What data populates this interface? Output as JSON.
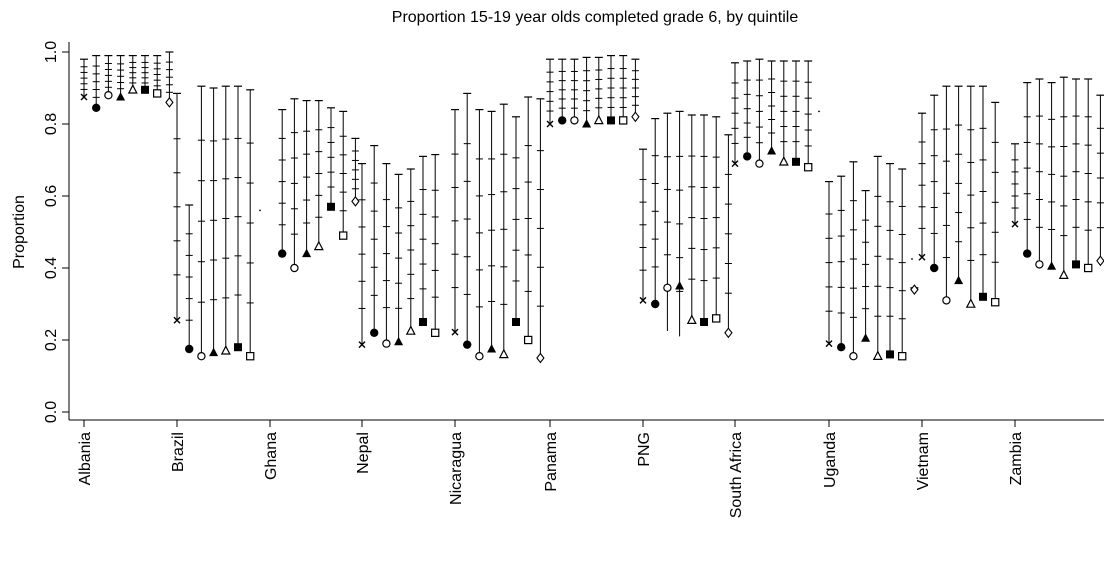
{
  "chart_data": {
    "type": "scatter",
    "title": "Proportion 15-19 year olds completed grade 6, by quintile",
    "xlabel": "",
    "ylabel": "Proportion",
    "ylim": [
      0.0,
      1.0
    ],
    "yticks": [
      "0.0",
      "0.2",
      "0.4",
      "0.6",
      "0.8",
      "1.0"
    ],
    "categories": [
      "Albania",
      "Brazil",
      "Ghana",
      "Nepal",
      "Nicaragua",
      "Panama",
      "PNG",
      "South Africa",
      "Uganda",
      "Vietnam",
      "Zambia"
    ],
    "series": [
      {
        "marker": "x",
        "values": [
          0.875,
          0.255,
          null,
          0.187,
          0.222,
          0.8,
          0.31,
          0.69,
          0.19,
          0.43,
          0.522
        ]
      },
      {
        "marker": "filled-circle",
        "values": [
          0.845,
          0.175,
          0.44,
          0.22,
          0.187,
          0.81,
          0.3,
          0.71,
          0.18,
          0.4,
          0.44
        ]
      },
      {
        "marker": "hollow-circle",
        "values": [
          0.88,
          0.155,
          0.4,
          0.19,
          0.155,
          0.81,
          0.345,
          0.69,
          0.155,
          0.31,
          0.41
        ]
      },
      {
        "marker": "filled-triangle",
        "values": [
          0.875,
          0.165,
          0.44,
          0.195,
          0.175,
          0.8,
          0.35,
          0.725,
          0.205,
          0.365,
          0.405
        ]
      },
      {
        "marker": "hollow-triangle",
        "values": [
          0.895,
          0.17,
          0.46,
          0.225,
          0.16,
          0.81,
          0.255,
          0.695,
          0.155,
          0.3,
          0.38
        ]
      },
      {
        "marker": "filled-square",
        "values": [
          0.895,
          0.18,
          0.57,
          0.25,
          0.25,
          0.81,
          0.25,
          0.695,
          0.16,
          0.32,
          0.41
        ]
      },
      {
        "marker": "hollow-square",
        "values": [
          0.885,
          0.155,
          0.49,
          0.22,
          0.2,
          0.81,
          0.26,
          0.68,
          0.155,
          0.305,
          0.4
        ]
      },
      {
        "marker": "hollow-diamond",
        "values": [
          0.86,
          null,
          0.585,
          null,
          0.15,
          0.82,
          0.22,
          null,
          0.34,
          null,
          0.42
        ]
      }
    ],
    "upper": [
      [
        0.98,
        0.885,
        0.765,
        0.69,
        0.84,
        0.98,
        0.73,
        0.97,
        0.64,
        0.83,
        0.745
      ],
      [
        0.99,
        0.575,
        0.84,
        0.74,
        0.885,
        0.98,
        0.815,
        0.975,
        0.655,
        0.88,
        0.915
      ],
      [
        0.99,
        0.905,
        0.87,
        0.69,
        0.84,
        0.98,
        0.83,
        0.98,
        0.695,
        0.905,
        0.925
      ],
      [
        0.99,
        0.9,
        0.865,
        0.66,
        0.835,
        0.985,
        0.835,
        0.975,
        0.615,
        0.905,
        0.915
      ],
      [
        0.99,
        0.905,
        0.865,
        0.675,
        0.855,
        0.985,
        0.825,
        0.975,
        0.71,
        0.905,
        0.93
      ],
      [
        0.99,
        0.905,
        0.845,
        0.71,
        0.82,
        0.99,
        0.825,
        0.975,
        0.69,
        0.905,
        0.925
      ],
      [
        0.99,
        0.895,
        0.835,
        0.715,
        0.875,
        0.99,
        0.82,
        0.975,
        0.675,
        0.86,
        0.925
      ],
      [
        1.0,
        null,
        0.76,
        null,
        0.87,
        0.98,
        0.77,
        null,
        0.345,
        null,
        0.88
      ]
    ],
    "lower": [
      [
        0.875,
        0.255,
        null,
        0.187,
        0.222,
        0.8,
        0.31,
        0.69,
        0.19,
        0.43,
        0.522
      ],
      [
        0.845,
        0.175,
        0.44,
        0.22,
        0.187,
        0.81,
        0.3,
        0.71,
        0.18,
        0.4,
        0.44
      ],
      [
        0.88,
        0.155,
        0.4,
        0.19,
        0.155,
        0.81,
        0.225,
        0.69,
        0.155,
        0.31,
        0.41
      ],
      [
        0.875,
        0.165,
        0.44,
        0.195,
        0.175,
        0.8,
        0.21,
        0.725,
        0.205,
        0.365,
        0.405
      ],
      [
        0.895,
        0.17,
        0.46,
        0.225,
        0.16,
        0.81,
        0.255,
        0.695,
        0.155,
        0.3,
        0.38
      ],
      [
        0.895,
        0.18,
        0.57,
        0.25,
        0.25,
        0.81,
        0.25,
        0.695,
        0.16,
        0.32,
        0.41
      ],
      [
        0.885,
        0.155,
        0.49,
        0.22,
        0.2,
        0.81,
        0.26,
        0.68,
        0.155,
        0.305,
        0.4
      ],
      [
        0.86,
        null,
        0.585,
        null,
        0.15,
        0.82,
        0.22,
        null,
        0.34,
        null,
        0.42
      ]
    ],
    "notch_fractions": [
      0.2,
      0.35,
      0.5,
      0.65,
      0.8
    ],
    "markers_present": true,
    "grid": false,
    "legend": "none",
    "ghana_first_point": 0.56,
    "uganda_marker_extra": null,
    "sa_extra_point": 0.835
  }
}
